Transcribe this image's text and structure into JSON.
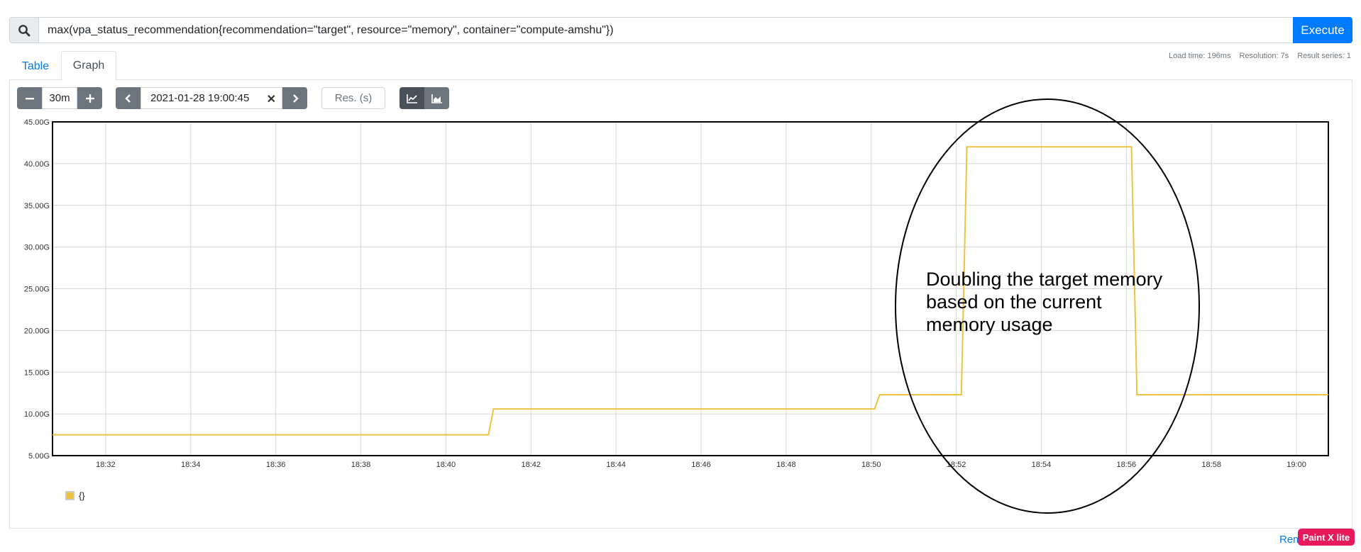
{
  "query": {
    "expression": "max(vpa_status_recommendation{recommendation=\"target\", resource=\"memory\", container=\"compute-amshu\"})",
    "execute_label": "Execute"
  },
  "tabs": [
    {
      "label": "Table"
    },
    {
      "label": "Graph"
    }
  ],
  "stats": {
    "load_time": "Load time: 196ms",
    "resolution": "Resolution: 7s",
    "result_series": "Result series: 1"
  },
  "controls": {
    "range": "30m",
    "end_time": "2021-01-28 19:00:45",
    "resolution_placeholder": "Res. (s)"
  },
  "legend": {
    "label": "{}"
  },
  "annotation": {
    "lines": [
      "Doubling the target memory",
      "based on the current",
      "memory usage"
    ]
  },
  "footer": {
    "reset_label": "Rem",
    "watermark": "Paint X lite"
  },
  "colors": {
    "series": "#EDC240",
    "primary": "#007bff"
  },
  "chart_data": {
    "type": "line",
    "title": "",
    "xlabel": "",
    "ylabel": "",
    "x_unit": "minutes since 18:00",
    "xlim": [
      30.75,
      60.75
    ],
    "ylim": [
      5,
      45
    ],
    "yticks": [
      5,
      10,
      15,
      20,
      25,
      30,
      35,
      40,
      45
    ],
    "ytick_labels": [
      "5.00G",
      "10.00G",
      "15.00G",
      "20.00G",
      "25.00G",
      "30.00G",
      "35.00G",
      "40.00G",
      "45.00G"
    ],
    "xticks": [
      32,
      34,
      36,
      38,
      40,
      42,
      44,
      46,
      48,
      50,
      52,
      54,
      56,
      58,
      60
    ],
    "xtick_labels": [
      "18:32",
      "18:34",
      "18:36",
      "18:38",
      "18:40",
      "18:42",
      "18:44",
      "18:46",
      "18:48",
      "18:50",
      "18:52",
      "18:54",
      "18:56",
      "18:58",
      "19:00"
    ],
    "grid": true,
    "series": [
      {
        "name": "{}",
        "x": [
          30.75,
          41.0,
          41.12,
          50.08,
          50.2,
          52.12,
          52.25,
          56.12,
          56.25,
          60.75
        ],
        "values": [
          7.5,
          7.5,
          10.6,
          10.6,
          12.3,
          12.3,
          42.0,
          42.0,
          12.3,
          12.3
        ]
      }
    ]
  }
}
